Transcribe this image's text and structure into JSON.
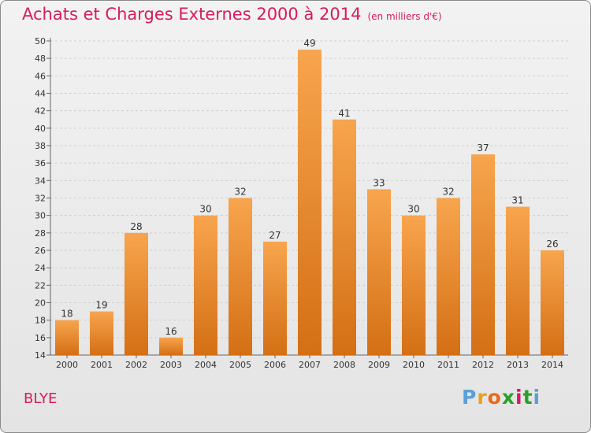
{
  "title": "Achats et Charges Externes 2000 à 2014",
  "unit_note": "(en milliers d'€)",
  "place": "BLYE",
  "logo": [
    "P",
    "r",
    "o",
    "x",
    "i",
    "t",
    "i"
  ],
  "colors": {
    "bar_light": "#f7a54e",
    "bar_dark": "#d46f14",
    "title": "#d81b60"
  },
  "chart_data": {
    "type": "bar",
    "categories": [
      "2000",
      "2001",
      "2002",
      "2003",
      "2004",
      "2005",
      "2006",
      "2007",
      "2008",
      "2009",
      "2010",
      "2011",
      "2012",
      "2013",
      "2014"
    ],
    "values": [
      18,
      19,
      28,
      16,
      30,
      32,
      27,
      49,
      41,
      33,
      30,
      32,
      37,
      31,
      26
    ],
    "ylim": [
      14,
      50
    ],
    "yticks": [
      14,
      16,
      18,
      20,
      22,
      24,
      26,
      28,
      30,
      32,
      34,
      36,
      38,
      40,
      42,
      44,
      46,
      48,
      50
    ],
    "grid": true,
    "data_labels": true
  }
}
